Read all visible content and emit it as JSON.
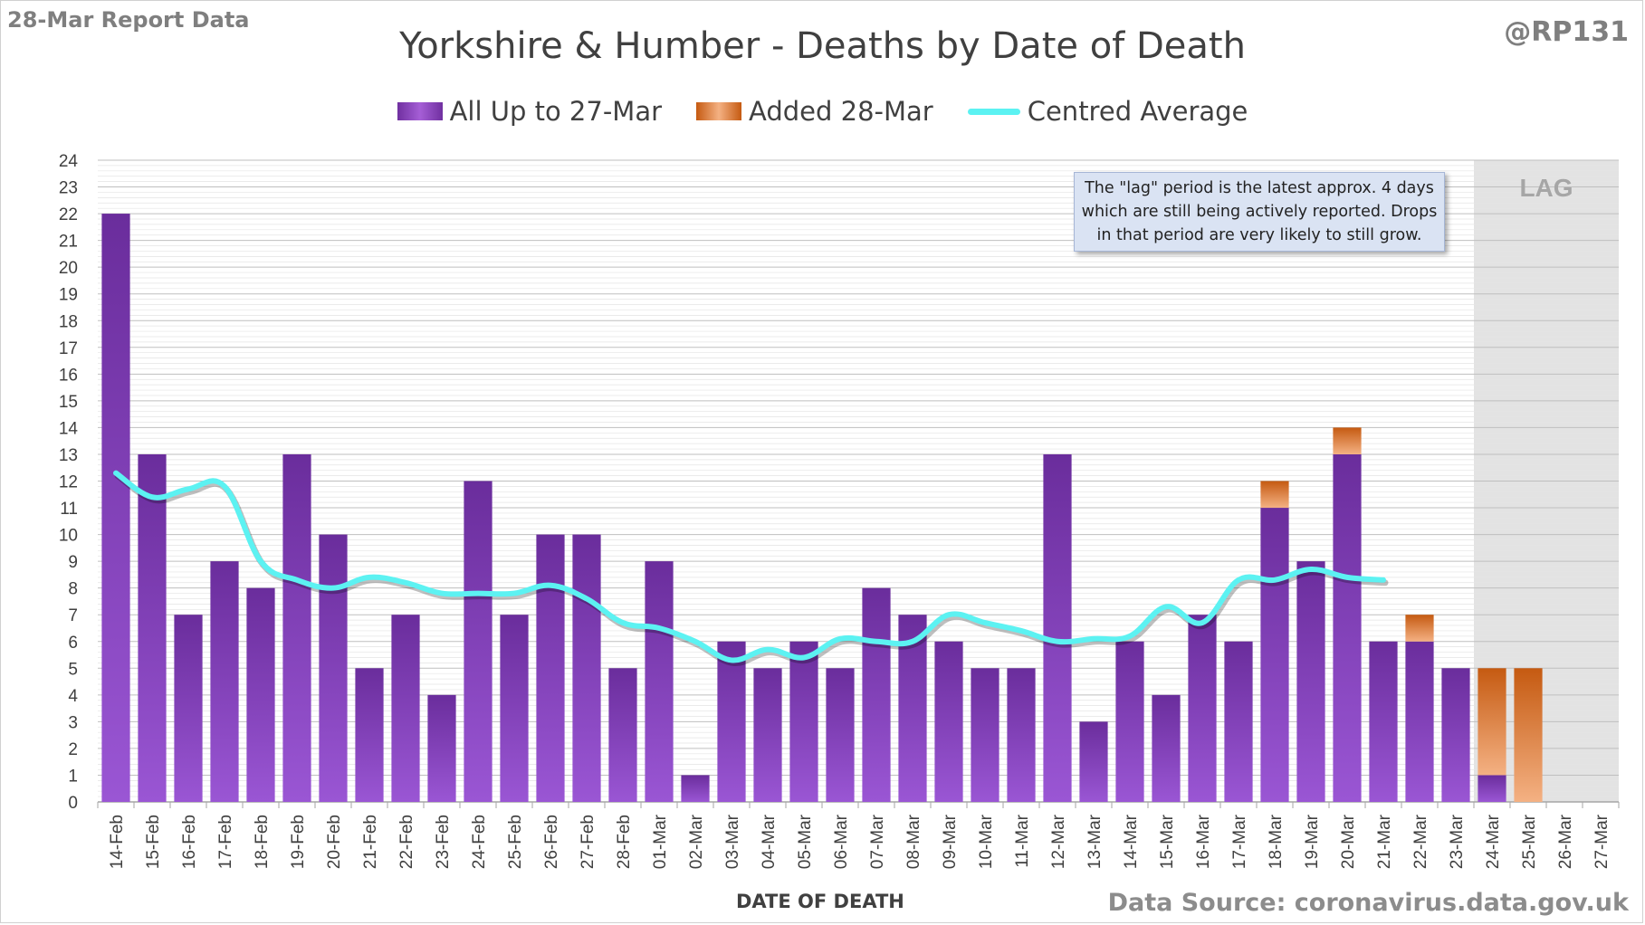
{
  "header": {
    "report_tag": "28-Mar Report Data",
    "handle": "@RP131",
    "title": "Yorkshire & Humber - Deaths by Date of Death"
  },
  "legend": {
    "all_label": "All Up to 27-Mar",
    "added_label": "Added 28-Mar",
    "avg_label": "Centred Average"
  },
  "note": "The \"lag\" period is the latest approx. 4 days which are still being actively reported. Drops in that period are very likely to still grow.",
  "lag_label": "LAG",
  "source": "Data Source: coronavirus.data.gov.uk",
  "colors": {
    "all": "#7030a0",
    "added": "#c55a11",
    "average": "#5cf2f2",
    "lag_shade": "#d9d9d9"
  },
  "chart_data": {
    "type": "bar",
    "stacked": true,
    "title": "Yorkshire & Humber - Deaths by Date of Death",
    "xlabel": "DATE OF DEATH",
    "ylabel": "",
    "ylim": [
      0,
      24
    ],
    "yticks": [
      0,
      1,
      2,
      3,
      4,
      5,
      6,
      7,
      8,
      9,
      10,
      11,
      12,
      13,
      14,
      15,
      16,
      17,
      18,
      19,
      20,
      21,
      22,
      23,
      24
    ],
    "grid": true,
    "legend_position": "top-center",
    "lag_categories": [
      "24-Mar",
      "25-Mar",
      "26-Mar",
      "27-Mar"
    ],
    "categories": [
      "14-Feb",
      "15-Feb",
      "16-Feb",
      "17-Feb",
      "18-Feb",
      "19-Feb",
      "20-Feb",
      "21-Feb",
      "22-Feb",
      "23-Feb",
      "24-Feb",
      "25-Feb",
      "26-Feb",
      "27-Feb",
      "28-Feb",
      "01-Mar",
      "02-Mar",
      "03-Mar",
      "04-Mar",
      "05-Mar",
      "06-Mar",
      "07-Mar",
      "08-Mar",
      "09-Mar",
      "10-Mar",
      "11-Mar",
      "12-Mar",
      "13-Mar",
      "14-Mar",
      "15-Mar",
      "16-Mar",
      "17-Mar",
      "18-Mar",
      "19-Mar",
      "20-Mar",
      "21-Mar",
      "22-Mar",
      "23-Mar",
      "24-Mar",
      "25-Mar",
      "26-Mar",
      "27-Mar"
    ],
    "series": [
      {
        "name": "All Up to 27-Mar",
        "kind": "bar",
        "values": [
          22,
          13,
          7,
          9,
          8,
          13,
          10,
          5,
          7,
          4,
          12,
          7,
          10,
          10,
          5,
          9,
          1,
          6,
          5,
          6,
          5,
          8,
          7,
          6,
          5,
          5,
          13,
          3,
          6,
          4,
          7,
          6,
          11,
          9,
          13,
          6,
          6,
          5,
          1,
          0,
          0,
          0
        ]
      },
      {
        "name": "Added 28-Mar",
        "kind": "bar",
        "values": [
          0,
          0,
          0,
          0,
          0,
          0,
          0,
          0,
          0,
          0,
          0,
          0,
          0,
          0,
          0,
          0,
          0,
          0,
          0,
          0,
          0,
          0,
          0,
          0,
          0,
          0,
          0,
          0,
          0,
          0,
          0,
          0,
          1,
          0,
          1,
          0,
          1,
          0,
          4,
          5,
          0,
          0
        ]
      },
      {
        "name": "Centred Average",
        "kind": "line",
        "values": [
          12.3,
          11.4,
          11.7,
          11.8,
          9.0,
          8.3,
          8.0,
          8.4,
          8.2,
          7.8,
          7.8,
          7.8,
          8.1,
          7.6,
          6.7,
          6.5,
          6.0,
          5.3,
          5.7,
          5.4,
          6.1,
          6.0,
          6.0,
          7.0,
          6.7,
          6.4,
          6.0,
          6.1,
          6.2,
          7.3,
          6.7,
          8.3,
          8.3,
          8.7,
          8.4,
          8.3,
          null,
          null,
          null,
          null,
          null,
          null
        ]
      }
    ]
  }
}
